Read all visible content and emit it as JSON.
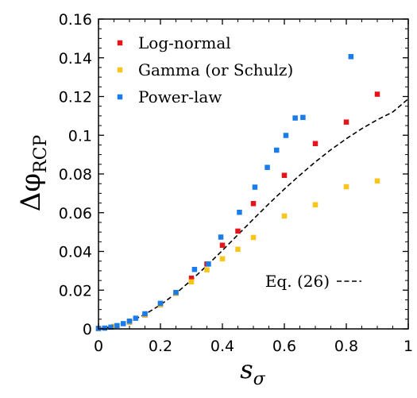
{
  "chart_data": {
    "type": "scatter",
    "xlabel": "s_σ",
    "xlabel_main": "s",
    "xlabel_sub": "σ",
    "ylabel": "Δφ_RCP",
    "ylabel_main": "Δφ",
    "ylabel_sub": "RCP",
    "xlim": [
      0,
      1
    ],
    "ylim": [
      0,
      0.16
    ],
    "x_ticks": [
      0,
      0.2,
      0.4,
      0.6,
      0.8,
      1
    ],
    "x_tick_labels": [
      "0",
      "0.2",
      "0.4",
      "0.6",
      "0.8",
      "1"
    ],
    "y_ticks": [
      0,
      0.02,
      0.04,
      0.06,
      0.08,
      0.1,
      0.12,
      0.14,
      0.16
    ],
    "y_tick_labels": [
      "0",
      "0.02",
      "0.04",
      "0.06",
      "0.08",
      "0.1",
      "0.12",
      "0.14",
      "0.16"
    ],
    "grid": false,
    "legend_position": "top-left",
    "series": [
      {
        "name": "Log-normal",
        "color": "#e3141a",
        "marker": "square",
        "points": [
          [
            0,
            0.0003
          ],
          [
            0.05,
            0.0012
          ],
          [
            0.1,
            0.0035
          ],
          [
            0.15,
            0.0072
          ],
          [
            0.2,
            0.0125
          ],
          [
            0.25,
            0.0185
          ],
          [
            0.3,
            0.0262
          ],
          [
            0.35,
            0.0335
          ],
          [
            0.4,
            0.0432
          ],
          [
            0.45,
            0.0505
          ],
          [
            0.5,
            0.0647
          ],
          [
            0.6,
            0.0793
          ],
          [
            0.7,
            0.0957
          ],
          [
            0.8,
            0.1068
          ],
          [
            0.9,
            0.1212
          ]
        ]
      },
      {
        "name": "Gamma (or Schulz)",
        "color": "#f9c51b",
        "marker": "square",
        "points": [
          [
            0,
            0.0002
          ],
          [
            0.05,
            0.0013
          ],
          [
            0.1,
            0.0035
          ],
          [
            0.15,
            0.0073
          ],
          [
            0.2,
            0.0125
          ],
          [
            0.25,
            0.0183
          ],
          [
            0.3,
            0.0243
          ],
          [
            0.35,
            0.0305
          ],
          [
            0.4,
            0.0362
          ],
          [
            0.45,
            0.0411
          ],
          [
            0.5,
            0.0472
          ],
          [
            0.6,
            0.0583
          ],
          [
            0.7,
            0.0641
          ],
          [
            0.8,
            0.0734
          ],
          [
            0.9,
            0.0764
          ]
        ]
      },
      {
        "name": "Power-law",
        "color": "#1a7ce9",
        "marker": "square",
        "points": [
          [
            0,
            0.0002
          ],
          [
            0.02,
            0.0004
          ],
          [
            0.04,
            0.0009
          ],
          [
            0.06,
            0.0017
          ],
          [
            0.08,
            0.0027
          ],
          [
            0.1,
            0.004
          ],
          [
            0.12,
            0.0055
          ],
          [
            0.15,
            0.0078
          ],
          [
            0.2,
            0.0132
          ],
          [
            0.25,
            0.0188
          ],
          [
            0.31,
            0.0307
          ],
          [
            0.355,
            0.0335
          ],
          [
            0.395,
            0.0474
          ],
          [
            0.455,
            0.0602
          ],
          [
            0.505,
            0.0732
          ],
          [
            0.545,
            0.0834
          ],
          [
            0.575,
            0.0923
          ],
          [
            0.605,
            0.0999
          ],
          [
            0.635,
            0.1089
          ],
          [
            0.66,
            0.1092
          ],
          [
            0.815,
            0.1406
          ]
        ]
      }
    ],
    "curve": {
      "name": "Eq. (26)",
      "style": "dashed",
      "color": "#000000",
      "points": [
        [
          0,
          0
        ],
        [
          0.05,
          0.0013
        ],
        [
          0.1,
          0.0037
        ],
        [
          0.15,
          0.0075
        ],
        [
          0.2,
          0.0124
        ],
        [
          0.25,
          0.0183
        ],
        [
          0.3,
          0.0252
        ],
        [
          0.35,
          0.0327
        ],
        [
          0.4,
          0.0405
        ],
        [
          0.45,
          0.0486
        ],
        [
          0.5,
          0.0567
        ],
        [
          0.55,
          0.0646
        ],
        [
          0.6,
          0.0722
        ],
        [
          0.65,
          0.0794
        ],
        [
          0.7,
          0.0862
        ],
        [
          0.75,
          0.0925
        ],
        [
          0.8,
          0.0982
        ],
        [
          0.85,
          0.1034
        ],
        [
          0.9,
          0.108
        ],
        [
          0.95,
          0.112
        ],
        [
          1.0,
          0.1188
        ]
      ]
    }
  }
}
